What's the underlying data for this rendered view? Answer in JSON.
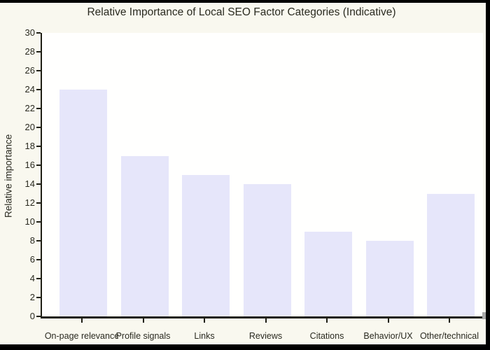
{
  "chart_data": {
    "type": "bar",
    "title": "Relative Importance of Local SEO Factor Categories (Indicative)",
    "categories": [
      "On-page relevance",
      "Profile signals",
      "Links",
      "Reviews",
      "Citations",
      "Behavior/UX",
      "Other/technical"
    ],
    "values": [
      24,
      17,
      15,
      14,
      9,
      8,
      13
    ],
    "xlabel": "",
    "ylabel": "Relative importance",
    "ylim": [
      0,
      30
    ],
    "y_ticks": [
      0,
      2,
      4,
      6,
      8,
      10,
      12,
      14,
      16,
      18,
      20,
      22,
      24,
      26,
      28,
      30
    ],
    "grid": false,
    "legend": null,
    "bar_color": "#e6e6fa"
  },
  "colors": {
    "figure_background": "#f9f8ef",
    "plot_background": "#fffffe",
    "axis": "#1f1f15",
    "text": "#2a2a20",
    "frame_border": "#000000",
    "grip": "#a9a9a9"
  }
}
